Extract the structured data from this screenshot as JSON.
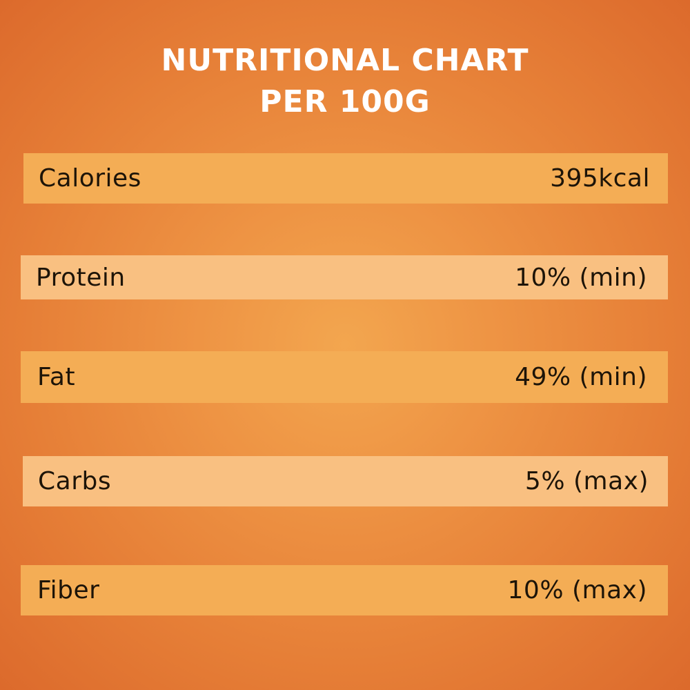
{
  "title": {
    "line1": "NUTRITIONAL CHART",
    "line2": "PER 100G"
  },
  "rows": [
    {
      "label": "Calories",
      "value": "395kcal"
    },
    {
      "label": "Protein",
      "value": "10% (min)"
    },
    {
      "label": "Fat",
      "value": "49% (min)"
    },
    {
      "label": "Carbs",
      "value": "5% (max)"
    },
    {
      "label": "Fiber",
      "value": "10% (max)"
    }
  ],
  "colors": {
    "background": "#e67f37",
    "row_dark": "#f4ad55",
    "row_light": "#f9c081",
    "title_text": "#ffffff",
    "row_text": "#1d1408"
  }
}
